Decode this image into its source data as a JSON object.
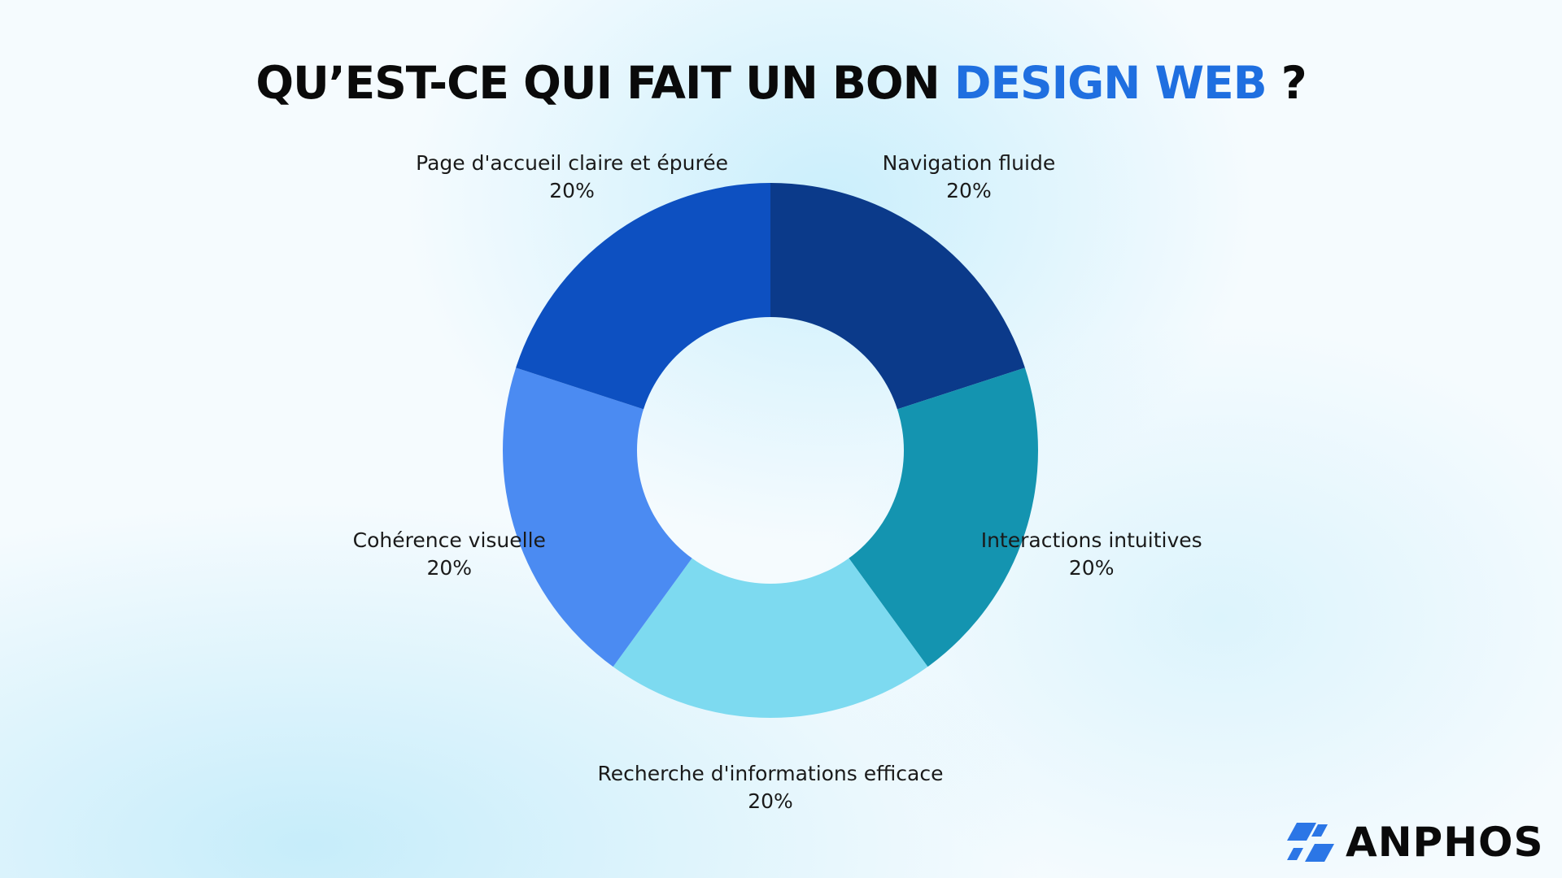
{
  "title": {
    "part1": "QU’EST-CE QUI FAIT UN BON ",
    "highlight": "DESIGN WEB",
    "part2": " ?"
  },
  "chart_data": {
    "type": "pie",
    "donut": true,
    "title": "QU’EST-CE QUI FAIT UN BON DESIGN WEB ?",
    "categories": [
      "Navigation fluide",
      "Interactions intuitives",
      "Recherche d'informations efficace",
      "Cohérence visuelle",
      "Page d'accueil claire et épurée"
    ],
    "values": [
      20,
      20,
      20,
      20,
      20
    ],
    "value_labels": [
      "20%",
      "20%",
      "20%",
      "20%",
      "20%"
    ],
    "colors": [
      "#0b3a8a",
      "#1494b0",
      "#7ddaf0",
      "#4b8bf2",
      "#0d50c1"
    ],
    "start_angle": "12 o'clock",
    "direction": "clockwise",
    "legend": "none"
  },
  "brand": {
    "name": "ANPHOS",
    "logo_icon": "double-chevron-logo-icon",
    "logo_color": "#2b76e6"
  }
}
